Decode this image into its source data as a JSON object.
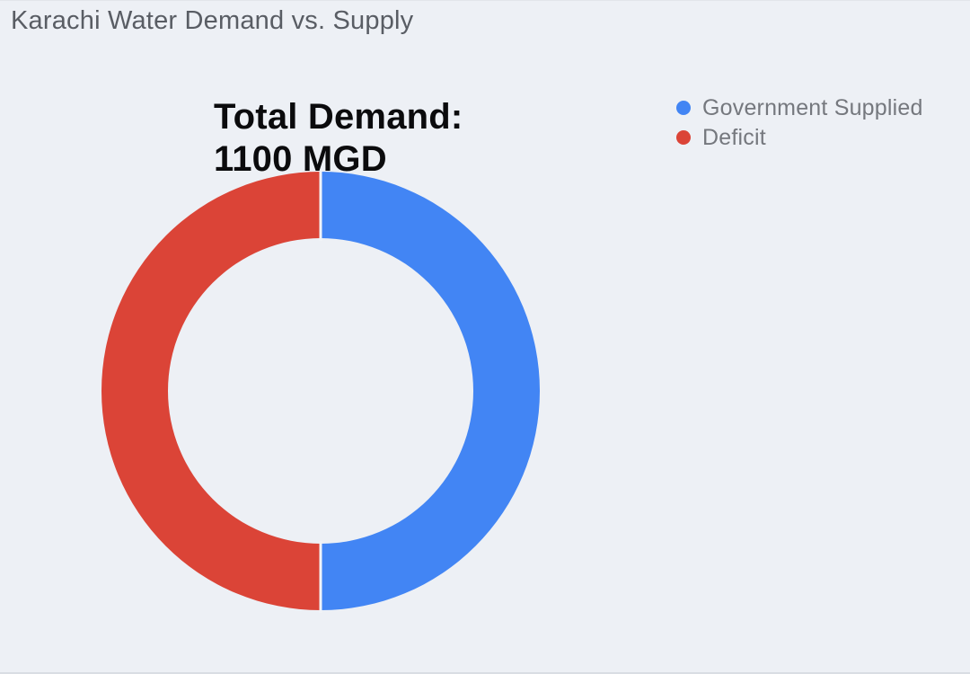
{
  "page": {
    "background": "#edf0f5"
  },
  "chart_data": {
    "type": "pie",
    "subtype": "donut",
    "title": "Karachi Water Demand vs. Supply",
    "center_label": {
      "line1": "Total Demand:",
      "line2": "1100 MGD"
    },
    "total_demand_mgd": 1100,
    "slices": [
      {
        "label": "Government Supplied",
        "value": 550,
        "color": "#4285f4"
      },
      {
        "label": "Deficit",
        "value": 550,
        "color": "#db4437"
      }
    ],
    "legend_position": "right",
    "start_angle_deg": 0,
    "direction": "clockwise",
    "slice_divider_color": "#f1f3f7"
  }
}
